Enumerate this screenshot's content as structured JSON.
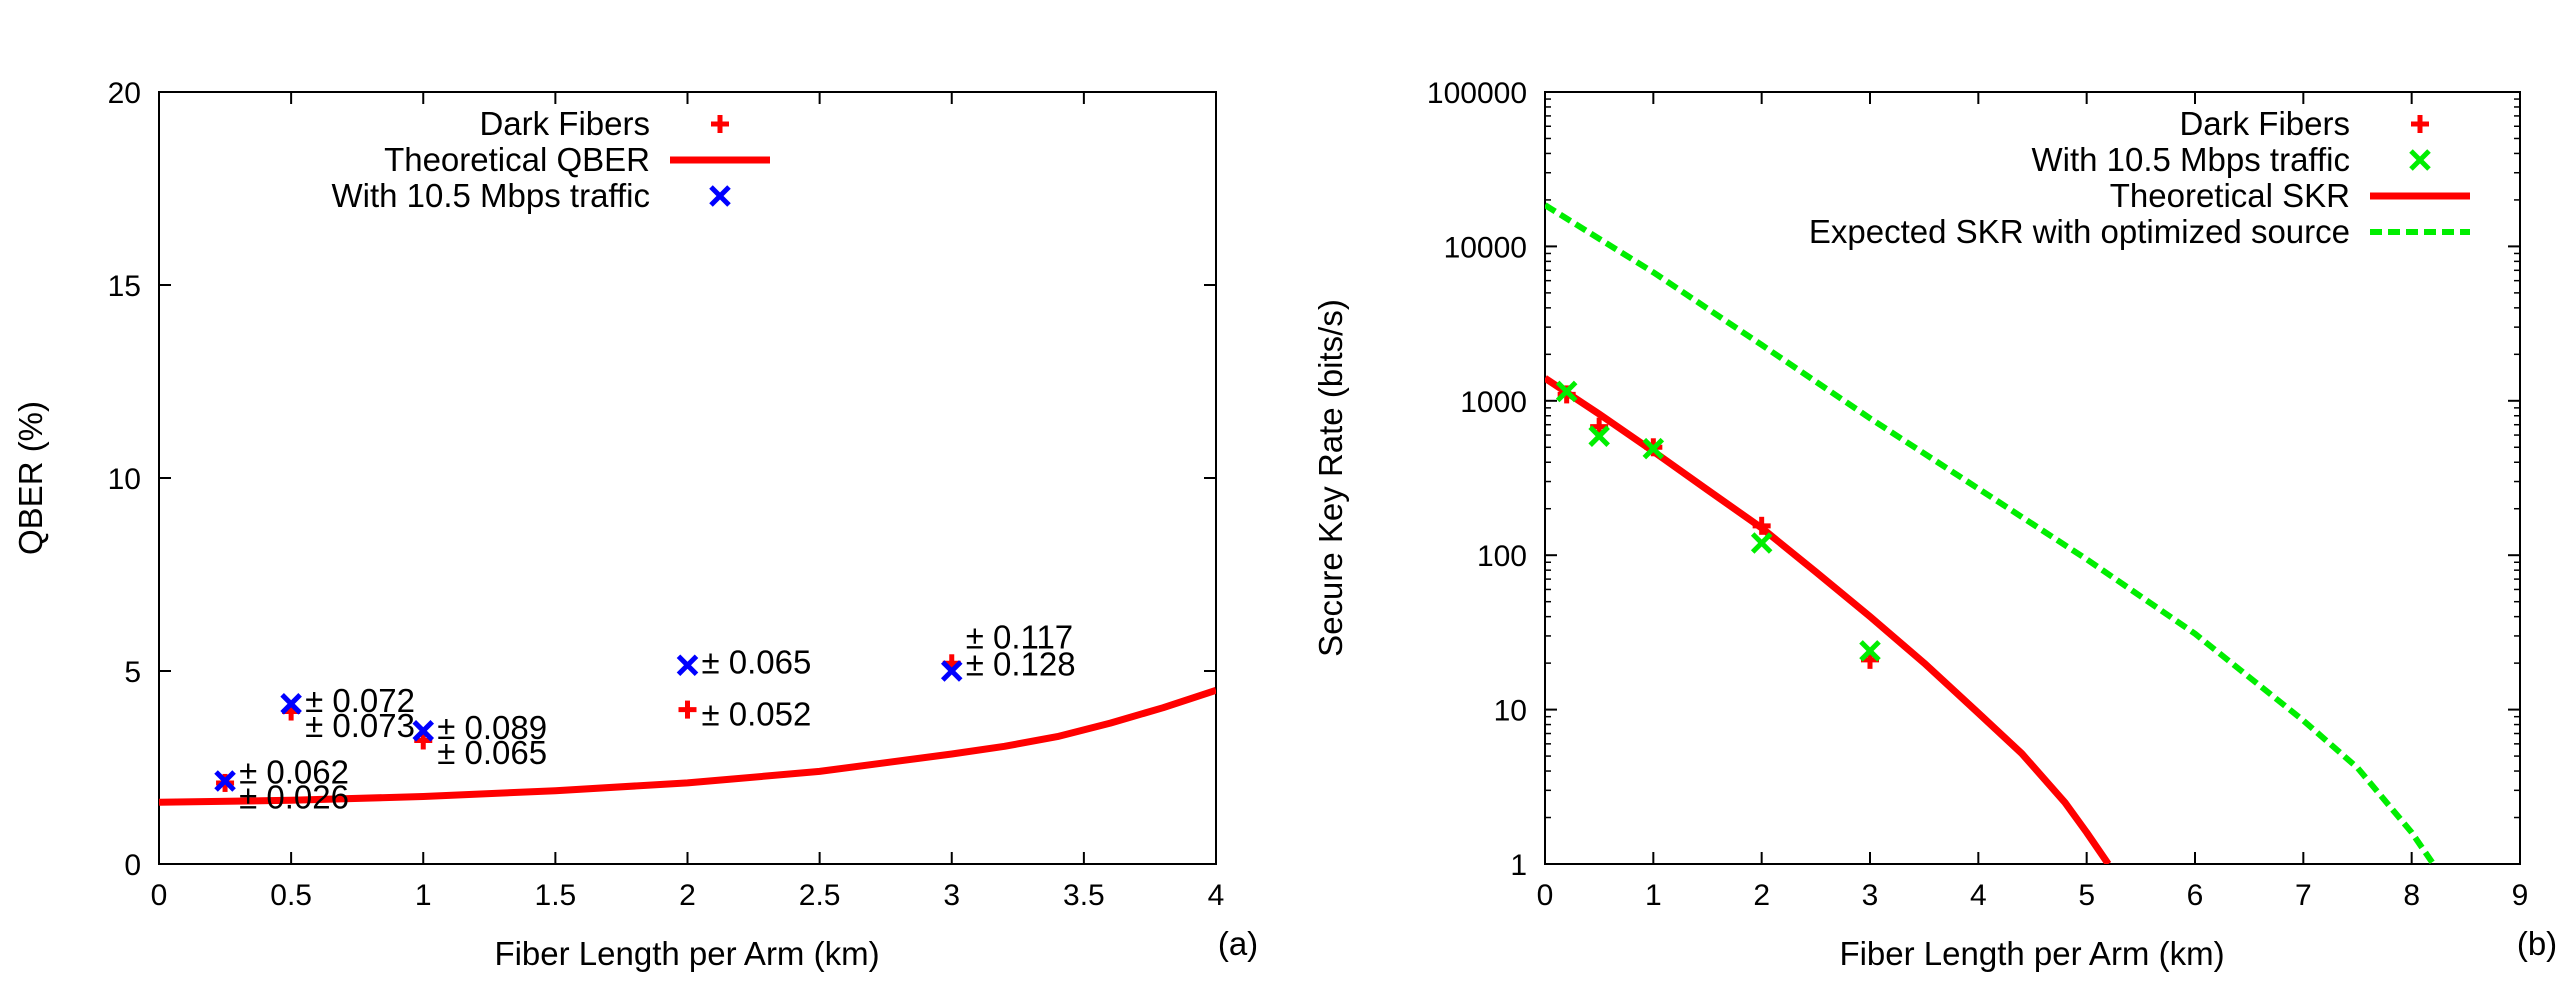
{
  "chart_data": [
    {
      "panel": "(a)",
      "type": "scatter",
      "title": "",
      "xlabel": "Fiber Length per Arm (km)",
      "ylabel": "QBER (%)",
      "xlim": [
        0,
        4
      ],
      "ylim": [
        0,
        20
      ],
      "xticks": [
        0,
        0.5,
        1,
        1.5,
        2,
        2.5,
        3,
        3.5,
        4
      ],
      "xtick_labels": [
        "0",
        "0.5",
        "1",
        "1.5",
        "2",
        "2.5",
        "3",
        "3.5",
        "4"
      ],
      "yticks": [
        0,
        5,
        10,
        15,
        20
      ],
      "ytick_labels": [
        "0",
        "5",
        "10",
        "15",
        "20"
      ],
      "grid": false,
      "legend_position": "top-center",
      "series": [
        {
          "name": "Dark Fibers",
          "kind": "points",
          "marker": "plus",
          "color": "#ff0000",
          "x": [
            0.25,
            0.5,
            1.0,
            2.0,
            3.0
          ],
          "y": [
            2.1,
            3.95,
            3.2,
            4.0,
            5.2
          ]
        },
        {
          "name": "Theoretical QBER",
          "kind": "line",
          "color": "#ff0000",
          "x": [
            0,
            0.5,
            1.0,
            1.5,
            2.0,
            2.5,
            3.0,
            3.2,
            3.4,
            3.6,
            3.8,
            4.0
          ],
          "y": [
            1.6,
            1.65,
            1.75,
            1.9,
            2.1,
            2.4,
            2.85,
            3.05,
            3.3,
            3.65,
            4.05,
            4.5
          ]
        },
        {
          "name": "With 10.5 Mbps traffic",
          "kind": "points",
          "marker": "cross",
          "color": "#0000ff",
          "x": [
            0.25,
            0.5,
            1.0,
            2.0,
            3.0
          ],
          "y": [
            2.15,
            4.15,
            3.45,
            5.15,
            5.0
          ]
        }
      ],
      "annotations": [
        {
          "text": "± 0.062",
          "x": 0.25,
          "y": 2.4
        },
        {
          "text": "± 0.026",
          "x": 0.25,
          "y": 1.75
        },
        {
          "text": "± 0.072",
          "x": 0.5,
          "y": 4.25
        },
        {
          "text": "± 0.073",
          "x": 0.5,
          "y": 3.6
        },
        {
          "text": "± 0.089",
          "x": 1.0,
          "y": 3.55
        },
        {
          "text": "± 0.065",
          "x": 1.0,
          "y": 2.9
        },
        {
          "text": "± 0.065",
          "x": 2.0,
          "y": 5.25
        },
        {
          "text": "± 0.052",
          "x": 2.0,
          "y": 3.9
        },
        {
          "text": "± 0.117",
          "x": 3.0,
          "y": 5.9
        },
        {
          "text": "± 0.128",
          "x": 3.0,
          "y": 5.2
        }
      ]
    },
    {
      "panel": "(b)",
      "type": "scatter",
      "title": "",
      "xlabel": "Fiber Length per Arm (km)",
      "ylabel": "Secure Key Rate (bits/s)",
      "yscale": "log",
      "xlim": [
        0,
        9
      ],
      "ylim": [
        1,
        100000
      ],
      "xticks": [
        0,
        1,
        2,
        3,
        4,
        5,
        6,
        7,
        8,
        9
      ],
      "xtick_labels": [
        "0",
        "1",
        "2",
        "3",
        "4",
        "5",
        "6",
        "7",
        "8",
        "9"
      ],
      "yticks": [
        1,
        10,
        100,
        1000,
        10000,
        100000
      ],
      "ytick_labels": [
        "1",
        "10",
        "100",
        "1000",
        "10000",
        "100000"
      ],
      "grid": false,
      "legend_position": "top-right",
      "series": [
        {
          "name": "Dark Fibers",
          "kind": "points",
          "marker": "plus",
          "color": "#ff0000",
          "x": [
            0.2,
            0.5,
            1.0,
            2.0,
            3.0
          ],
          "y": [
            1100,
            680,
            500,
            155,
            21
          ]
        },
        {
          "name": "With 10.5 Mbps traffic",
          "kind": "points",
          "marker": "cross",
          "color": "#00ee00",
          "x": [
            0.2,
            0.5,
            1.0,
            2.0,
            3.0
          ],
          "y": [
            1150,
            590,
            490,
            120,
            24
          ]
        },
        {
          "name": "Theoretical SKR",
          "kind": "line",
          "color": "#ff0000",
          "x": [
            0,
            0.5,
            1,
            1.5,
            2,
            2.5,
            3,
            3.5,
            4,
            4.4,
            4.8,
            5.0,
            5.2
          ],
          "y": [
            1400,
            820,
            470,
            265,
            150,
            78,
            40,
            20,
            9.5,
            5.2,
            2.5,
            1.6,
            1.0
          ]
        },
        {
          "name": "Expected SKR with optimized source",
          "kind": "dashed-line",
          "color": "#00ee00",
          "x": [
            0,
            1,
            2,
            3,
            4,
            5,
            6,
            7,
            7.5,
            8,
            8.2
          ],
          "y": [
            18500,
            6800,
            2300,
            770,
            270,
            94,
            31,
            8.5,
            4.2,
            1.6,
            1.0
          ]
        }
      ],
      "annotations": []
    }
  ]
}
